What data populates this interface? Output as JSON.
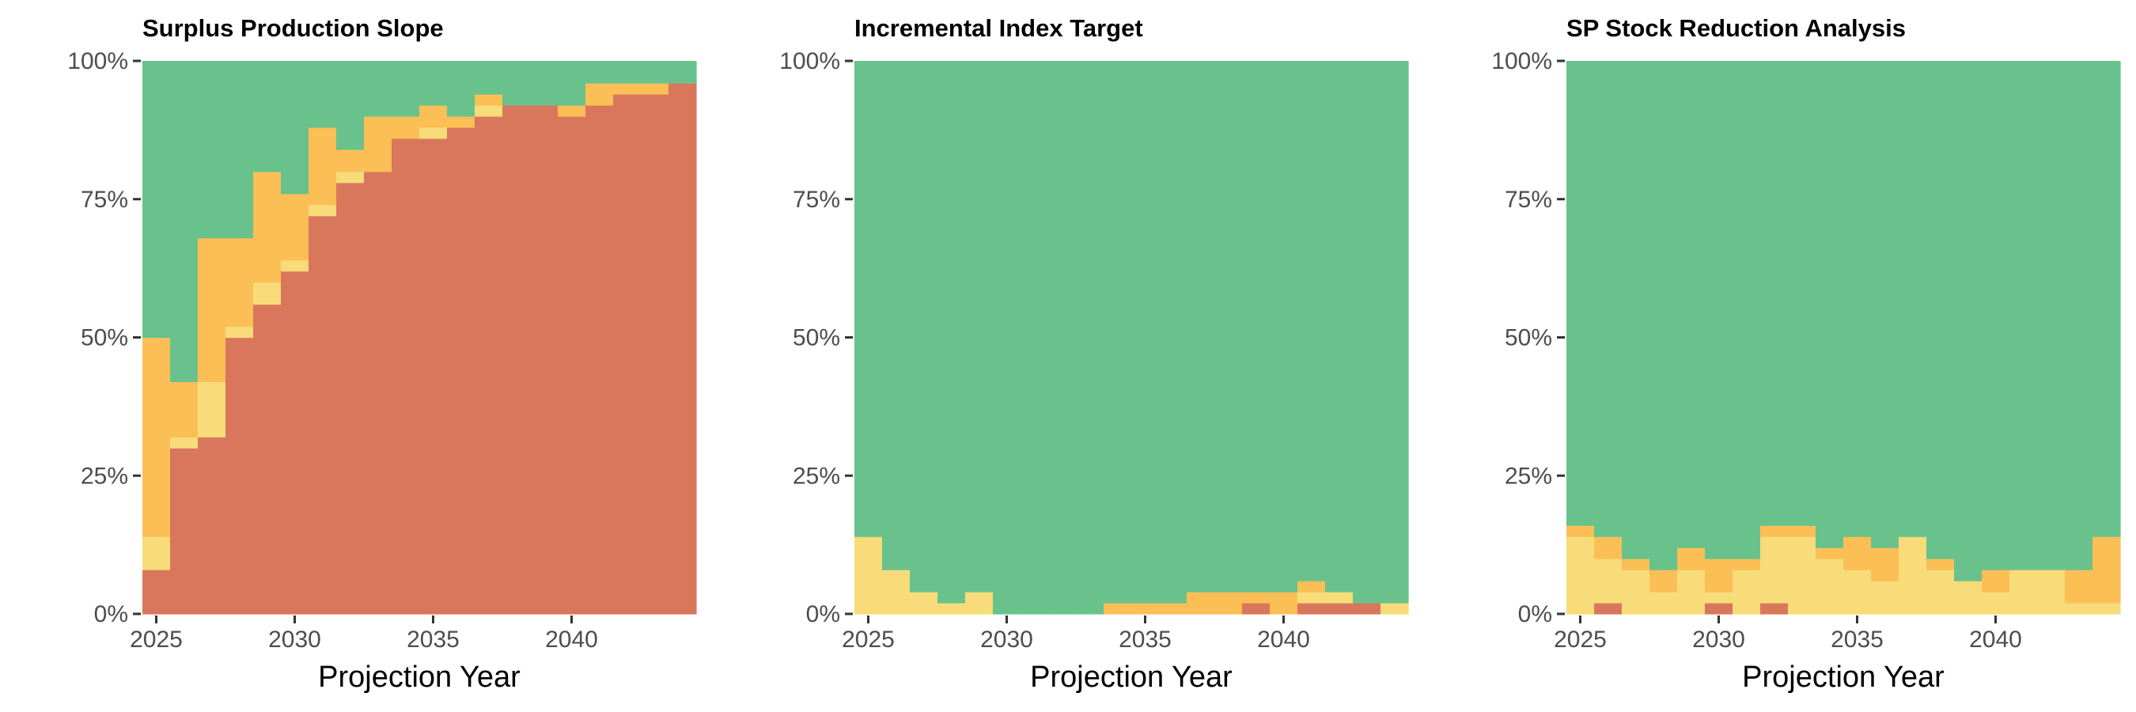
{
  "colors": {
    "red": "#d9775c",
    "orange": "#fbbf56",
    "yellow": "#f7dc79",
    "green": "#69c28c",
    "tick_text": "#4d4d4d",
    "tick_mark": "#333333"
  },
  "chart_data": [
    {
      "type": "bar",
      "stacked": true,
      "normalized": true,
      "title": "Surplus Production Slope",
      "xlabel": "Projection Year",
      "ylabel": "",
      "ylim": [
        0,
        1
      ],
      "yticks": [
        "0%",
        "25%",
        "50%",
        "75%",
        "100%"
      ],
      "xticks": [
        "2025",
        "2030",
        "2035",
        "2040"
      ],
      "grid": false,
      "legend": "none",
      "x": [
        2025,
        2026,
        2027,
        2028,
        2029,
        2030,
        2031,
        2032,
        2033,
        2034,
        2035,
        2036,
        2037,
        2038,
        2039,
        2040,
        2041,
        2042,
        2043,
        2044
      ],
      "series": [
        {
          "color": "red",
          "values": [
            0.08,
            0.3,
            0.32,
            0.5,
            0.56,
            0.62,
            0.72,
            0.78,
            0.8,
            0.86,
            0.86,
            0.88,
            0.9,
            0.92,
            0.92,
            0.9,
            0.92,
            0.94,
            0.94,
            0.96
          ]
        },
        {
          "color": "yellow",
          "values": [
            0.06,
            0.02,
            0.1,
            0.02,
            0.04,
            0.02,
            0.02,
            0.02,
            0.0,
            0.0,
            0.02,
            0.0,
            0.02,
            0.0,
            0.0,
            0.0,
            0.0,
            0.0,
            0.0,
            0.0
          ]
        },
        {
          "color": "orange",
          "values": [
            0.36,
            0.1,
            0.26,
            0.16,
            0.2,
            0.12,
            0.14,
            0.04,
            0.1,
            0.04,
            0.04,
            0.02,
            0.02,
            0.0,
            0.0,
            0.02,
            0.04,
            0.02,
            0.02,
            0.0
          ]
        },
        {
          "color": "green",
          "values": [
            0.5,
            0.58,
            0.32,
            0.32,
            0.2,
            0.24,
            0.12,
            0.16,
            0.1,
            0.1,
            0.08,
            0.1,
            0.06,
            0.08,
            0.08,
            0.08,
            0.04,
            0.04,
            0.04,
            0.04
          ]
        }
      ]
    },
    {
      "type": "bar",
      "stacked": true,
      "normalized": true,
      "title": "Incremental Index Target",
      "xlabel": "Projection Year",
      "ylabel": "",
      "ylim": [
        0,
        1
      ],
      "yticks": [
        "0%",
        "25%",
        "50%",
        "75%",
        "100%"
      ],
      "xticks": [
        "2025",
        "2030",
        "2035",
        "2040"
      ],
      "grid": false,
      "legend": "none",
      "x": [
        2025,
        2026,
        2027,
        2028,
        2029,
        2030,
        2031,
        2032,
        2033,
        2034,
        2035,
        2036,
        2037,
        2038,
        2039,
        2040,
        2041,
        2042,
        2043,
        2044
      ],
      "series": [
        {
          "color": "red",
          "values": [
            0,
            0,
            0,
            0,
            0,
            0,
            0,
            0,
            0,
            0,
            0,
            0,
            0,
            0,
            0.02,
            0,
            0.02,
            0.02,
            0.02,
            0
          ]
        },
        {
          "color": "yellow",
          "values": [
            0.14,
            0.08,
            0.04,
            0.02,
            0.04,
            0,
            0,
            0,
            0,
            0,
            0,
            0,
            0,
            0,
            0,
            0,
            0.02,
            0.02,
            0,
            0.02
          ]
        },
        {
          "color": "orange",
          "values": [
            0,
            0,
            0,
            0,
            0,
            0,
            0,
            0,
            0,
            0.02,
            0.02,
            0.02,
            0.04,
            0.04,
            0.02,
            0.04,
            0.02,
            0,
            0,
            0
          ]
        },
        {
          "color": "green",
          "values": [
            0.86,
            0.92,
            0.96,
            0.98,
            0.96,
            1.0,
            1.0,
            1.0,
            1.0,
            0.98,
            0.98,
            0.98,
            0.96,
            0.96,
            0.96,
            0.96,
            0.94,
            0.96,
            0.98,
            0.98
          ]
        }
      ]
    },
    {
      "type": "bar",
      "stacked": true,
      "normalized": true,
      "title": "SP Stock Reduction Analysis",
      "xlabel": "Projection Year",
      "ylabel": "",
      "ylim": [
        0,
        1
      ],
      "yticks": [
        "0%",
        "25%",
        "50%",
        "75%",
        "100%"
      ],
      "xticks": [
        "2025",
        "2030",
        "2035",
        "2040"
      ],
      "grid": false,
      "legend": "none",
      "x": [
        2025,
        2026,
        2027,
        2028,
        2029,
        2030,
        2031,
        2032,
        2033,
        2034,
        2035,
        2036,
        2037,
        2038,
        2039,
        2040,
        2041,
        2042,
        2043,
        2044
      ],
      "series": [
        {
          "color": "red",
          "values": [
            0,
            0.02,
            0,
            0,
            0,
            0.02,
            0,
            0.02,
            0,
            0,
            0,
            0,
            0,
            0,
            0,
            0,
            0,
            0,
            0,
            0
          ]
        },
        {
          "color": "yellow",
          "values": [
            0.14,
            0.08,
            0.08,
            0.04,
            0.08,
            0.02,
            0.08,
            0.12,
            0.14,
            0.1,
            0.08,
            0.06,
            0.14,
            0.08,
            0.06,
            0.04,
            0.08,
            0.08,
            0.02,
            0.02
          ]
        },
        {
          "color": "orange",
          "values": [
            0.02,
            0.04,
            0.02,
            0.04,
            0.04,
            0.06,
            0.02,
            0.02,
            0.02,
            0.02,
            0.06,
            0.06,
            0,
            0.02,
            0,
            0.04,
            0,
            0,
            0.06,
            0.12
          ]
        },
        {
          "color": "green",
          "values": [
            0.84,
            0.86,
            0.9,
            0.92,
            0.88,
            0.9,
            0.9,
            0.84,
            0.84,
            0.88,
            0.86,
            0.88,
            0.86,
            0.9,
            0.94,
            0.92,
            0.92,
            0.92,
            0.92,
            0.86
          ]
        }
      ]
    }
  ]
}
